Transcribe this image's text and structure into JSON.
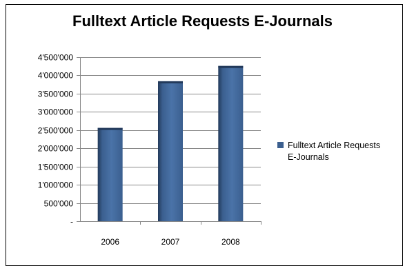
{
  "chart_data": {
    "type": "bar",
    "title": "Fulltext Article Requests E-Journals",
    "categories": [
      "2006",
      "2007",
      "2008"
    ],
    "series": [
      {
        "name": "Fulltext Article Requests E-Journals",
        "values": [
          2560000,
          3840000,
          4260000
        ]
      }
    ],
    "ylim": [
      0,
      4500000
    ],
    "yticks": [
      0,
      500000,
      1000000,
      1500000,
      2000000,
      2500000,
      3000000,
      3500000,
      4000000,
      4500000
    ],
    "ytick_labels": [
      "-",
      "500'000",
      "1'000'000",
      "1'500'000",
      "2'000'000",
      "2'500'000",
      "3'000'000",
      "3'500'000",
      "4'000'000",
      "4'500'000"
    ],
    "grid": true,
    "legend_position": "right",
    "legend_lines": [
      "Fulltext Article Requests",
      "E-Journals"
    ],
    "colors": {
      "bar": "#3b5f8f",
      "bar_dark": "#22395a",
      "bar_light": "#4a73a8",
      "grid": "#888888"
    }
  }
}
